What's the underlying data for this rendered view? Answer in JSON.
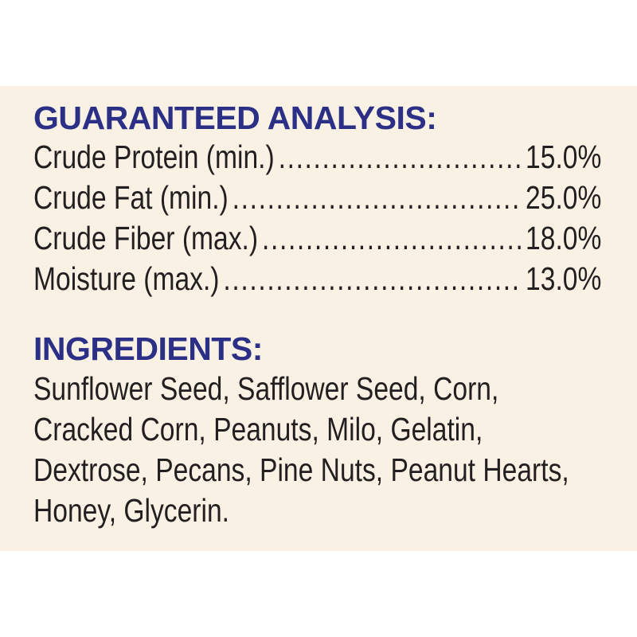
{
  "analysis": {
    "title": "GUARANTEED ANALYSIS:",
    "rows": [
      {
        "label": "Crude Protein (min.)",
        "value": "15.0%"
      },
      {
        "label": "Crude Fat (min.)",
        "value": "25.0%"
      },
      {
        "label": "Crude Fiber (max.)",
        "value": "18.0%"
      },
      {
        "label": "Moisture (max.)",
        "value": "13.0%"
      }
    ]
  },
  "ingredients": {
    "title": "INGREDIENTS:",
    "lines": [
      "Sunflower Seed, Safflower Seed, Corn,",
      "Cracked Corn, Peanuts, Milo, Gelatin,",
      "Dextrose, Pecans, Pine Nuts, Peanut Hearts,",
      "Honey, Glycerin."
    ]
  },
  "colors": {
    "heading": "#2b2f86",
    "panel": "#f8f1e4",
    "text": "#231f20"
  }
}
